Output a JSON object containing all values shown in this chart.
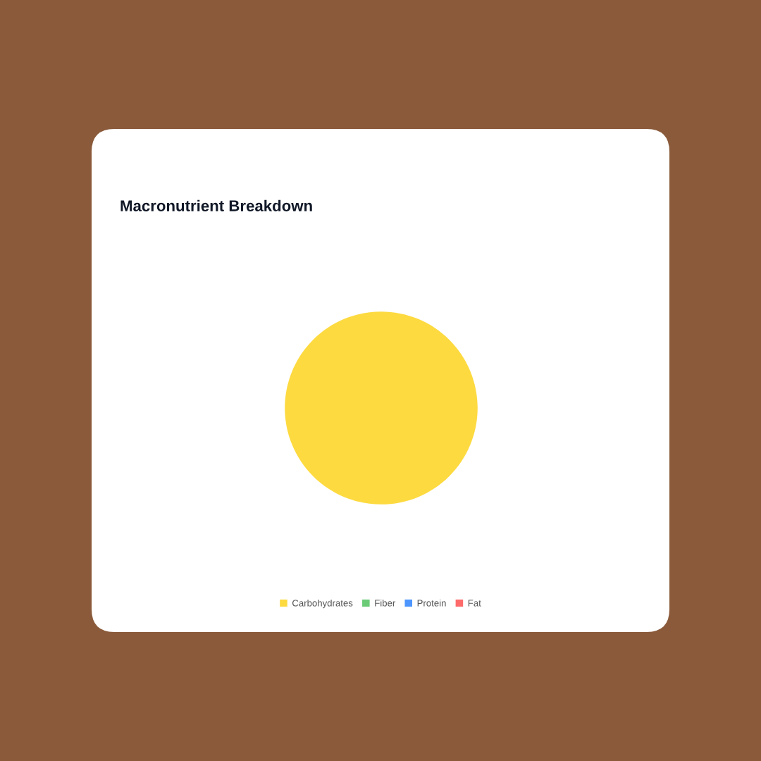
{
  "chart_data": {
    "type": "pie",
    "title": "Macronutrient Breakdown",
    "categories": [
      "Carbohydrates",
      "Fiber",
      "Protein",
      "Fat"
    ],
    "values": [
      100,
      0,
      0,
      0
    ],
    "colors": [
      "#fdda40",
      "#6bcb77",
      "#4d96ff",
      "#ff6b6b"
    ],
    "legend": "bottom"
  }
}
